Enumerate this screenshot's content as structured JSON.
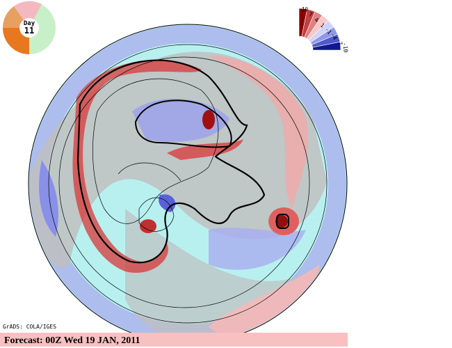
{
  "day_dial": {
    "label": "Day",
    "day": "11"
  },
  "color_scale": {
    "labels": [
      "10",
      "7",
      "4",
      "1",
      "-1",
      "-4",
      "-7",
      "-10"
    ]
  },
  "credit": "GrADS: COLA/IGES",
  "footer": {
    "forecast": "Forecast: 00Z Wed 19 JAN, 2011"
  }
}
